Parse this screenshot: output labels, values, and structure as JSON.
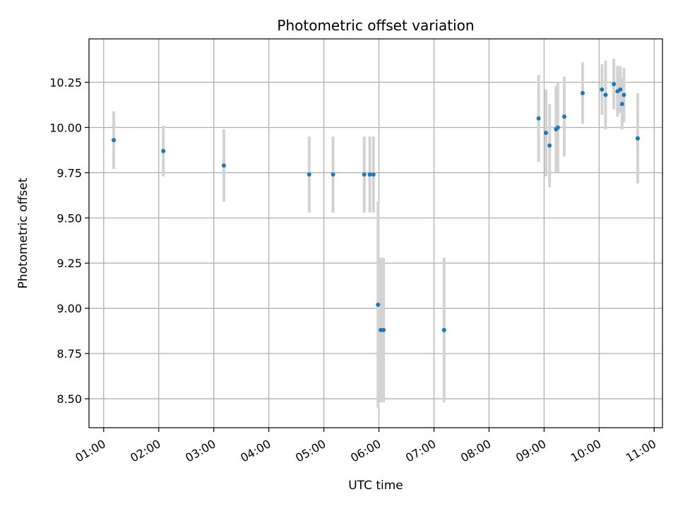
{
  "chart_data": {
    "type": "scatter",
    "title": "Photometric offset variation",
    "xlabel": "UTC time",
    "ylabel": "Photometric offset",
    "x_ticks": [
      "01:00",
      "02:00",
      "03:00",
      "04:00",
      "05:00",
      "06:00",
      "07:00",
      "08:00",
      "09:00",
      "10:00",
      "11:00"
    ],
    "y_ticks": [
      "8.50",
      "8.75",
      "9.00",
      "9.25",
      "9.50",
      "9.75",
      "10.00",
      "10.25"
    ],
    "xlim": [
      "00:44",
      "11:09"
    ],
    "ylim": [
      8.34,
      10.49
    ],
    "grid": true,
    "point_color": "#1f77b4",
    "errorbar_color": "#d3d3d3",
    "series": [
      {
        "points": [
          {
            "x": "01:11",
            "y": 9.93,
            "yerr": 0.16
          },
          {
            "x": "02:05",
            "y": 9.87,
            "yerr": 0.14
          },
          {
            "x": "03:11",
            "y": 9.79,
            "yerr": 0.2
          },
          {
            "x": "04:44",
            "y": 9.74,
            "yerr": 0.21
          },
          {
            "x": "05:10",
            "y": 9.74,
            "yerr": 0.21
          },
          {
            "x": "05:44",
            "y": 9.74,
            "yerr": 0.21
          },
          {
            "x": "05:50",
            "y": 9.74,
            "yerr": 0.21
          },
          {
            "x": "05:54",
            "y": 9.74,
            "yerr": 0.21
          },
          {
            "x": "05:59",
            "y": 9.02,
            "yerr": 0.57
          },
          {
            "x": "06:02",
            "y": 8.88,
            "yerr": 0.4
          },
          {
            "x": "06:05",
            "y": 8.88,
            "yerr": 0.4
          },
          {
            "x": "07:11",
            "y": 8.88,
            "yerr": 0.4
          },
          {
            "x": "08:54",
            "y": 10.05,
            "yerr": 0.24
          },
          {
            "x": "09:02",
            "y": 9.97,
            "yerr": 0.24
          },
          {
            "x": "09:06",
            "y": 9.9,
            "yerr": 0.23
          },
          {
            "x": "09:13",
            "y": 9.99,
            "yerr": 0.24
          },
          {
            "x": "09:15",
            "y": 10.0,
            "yerr": 0.25
          },
          {
            "x": "09:22",
            "y": 10.06,
            "yerr": 0.22
          },
          {
            "x": "09:42",
            "y": 10.19,
            "yerr": 0.17
          },
          {
            "x": "10:03",
            "y": 10.21,
            "yerr": 0.14
          },
          {
            "x": "10:07",
            "y": 10.18,
            "yerr": 0.19
          },
          {
            "x": "10:16",
            "y": 10.24,
            "yerr": 0.14
          },
          {
            "x": "10:20",
            "y": 10.2,
            "yerr": 0.14
          },
          {
            "x": "10:23",
            "y": 10.21,
            "yerr": 0.13
          },
          {
            "x": "10:25",
            "y": 10.13,
            "yerr": 0.14
          },
          {
            "x": "10:27",
            "y": 10.18,
            "yerr": 0.15
          },
          {
            "x": "10:42",
            "y": 9.94,
            "yerr": 0.25
          }
        ]
      }
    ]
  }
}
